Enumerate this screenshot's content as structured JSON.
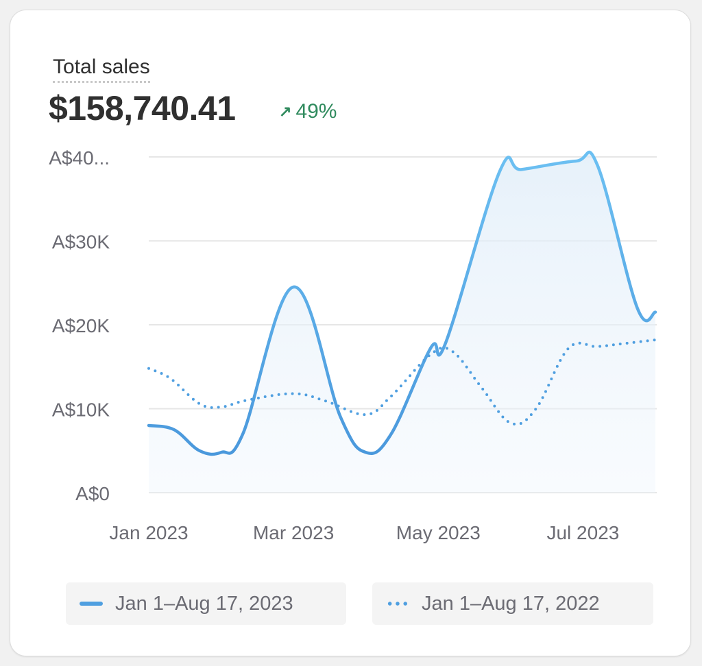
{
  "card": {
    "title": "Total sales",
    "total": "$158,740.41",
    "change": "49%",
    "change_icon": "arrow-up-right-icon"
  },
  "colors": {
    "line": "#4f9fe0",
    "positive": "#2f8a5d",
    "grid": "#e6e6e6"
  },
  "chart_data": {
    "type": "line",
    "title": "Total sales",
    "ylim": [
      0,
      40000
    ],
    "y_ticks": [
      0,
      10000,
      20000,
      30000,
      40000
    ],
    "y_tick_labels": [
      "A$0",
      "A$10K",
      "A$20K",
      "A$30K",
      "A$40..."
    ],
    "x_ticks": [
      0,
      2,
      4,
      6
    ],
    "x_tick_labels": [
      "Jan 2023",
      "Mar 2023",
      "May 2023",
      "Jul 2023"
    ],
    "xlim": [
      0,
      7
    ],
    "grid": true,
    "legend_position": "bottom",
    "series": [
      {
        "name": "Jan 1–Aug 17, 2023",
        "style": "solid",
        "x": [
          0,
          0.35,
          0.7,
          1.0,
          1.3,
          2.0,
          2.65,
          3.0,
          3.35,
          3.9,
          4.1,
          4.85,
          5.15,
          5.9,
          6.2,
          6.75,
          7.0
        ],
        "y": [
          8000,
          7500,
          5000,
          4800,
          7000,
          24500,
          9000,
          4800,
          7000,
          17300,
          17800,
          38300,
          38500,
          39500,
          39000,
          22000,
          21500
        ]
      },
      {
        "name": "Jan 1–Aug 17, 2022",
        "style": "dotted",
        "x": [
          0,
          0.3,
          0.7,
          1.0,
          1.35,
          2.0,
          2.45,
          3.0,
          3.35,
          3.9,
          4.2,
          4.6,
          5.0,
          5.35,
          5.8,
          6.2,
          6.6,
          7.0
        ],
        "y": [
          14800,
          13600,
          10600,
          10200,
          11000,
          11800,
          10900,
          9300,
          11500,
          16500,
          16800,
          12500,
          8300,
          10000,
          17200,
          17400,
          17800,
          18200
        ]
      }
    ]
  }
}
